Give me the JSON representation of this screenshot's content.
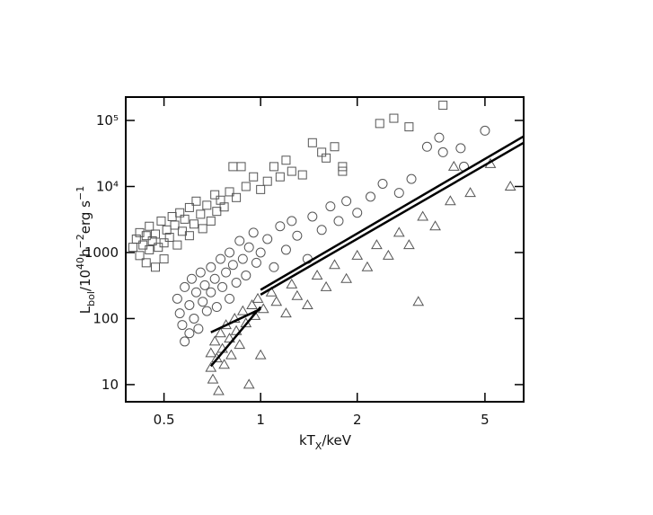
{
  "chart_data": {
    "type": "scatter",
    "xscale": "log",
    "yscale": "log",
    "xlim": [
      0.38,
      6.6
    ],
    "ylim": [
      5.5,
      226000
    ],
    "xticks": [
      0.5,
      1,
      2,
      5
    ],
    "yticks": [
      10,
      100,
      1000,
      {
        "value": 10000,
        "label": "10⁴"
      },
      {
        "value": 100000,
        "label": "10⁵"
      }
    ],
    "xlabel": [
      {
        "text": "kT"
      },
      {
        "text": "X",
        "shift": "sub"
      },
      {
        "text": "/keV"
      }
    ],
    "ylabel": [
      {
        "text": "L"
      },
      {
        "text": "bol",
        "shift": "sub"
      },
      {
        "text": "/10"
      },
      {
        "text": "40",
        "shift": "sup"
      },
      {
        "text": "h"
      },
      {
        "text": "−2",
        "shift": "sup"
      },
      {
        "text": "erg s"
      },
      {
        "text": "−1",
        "shift": "sup"
      }
    ],
    "series": [
      {
        "marker": "square",
        "color": "#555555",
        "x": [
          0.4,
          0.41,
          0.42,
          0.42,
          0.43,
          0.44,
          0.44,
          0.45,
          0.45,
          0.46,
          0.47,
          0.47,
          0.48,
          0.49,
          0.5,
          0.5,
          0.51,
          0.52,
          0.53,
          0.54,
          0.55,
          0.56,
          0.57,
          0.58,
          0.6,
          0.6,
          0.62,
          0.63,
          0.65,
          0.66,
          0.68,
          0.7,
          0.72,
          0.73,
          0.75,
          0.77,
          0.8,
          0.82,
          0.84,
          0.87,
          0.9,
          0.95,
          1.0,
          1.05,
          1.1,
          1.15,
          1.2,
          1.25,
          1.35,
          1.45,
          1.55,
          1.6,
          1.7,
          1.8,
          1.8,
          2.35,
          2.6,
          2.9,
          3.7
        ],
        "values": [
          1200,
          1600,
          900,
          2000,
          1300,
          700,
          1800,
          1100,
          2500,
          1500,
          600,
          1900,
          1200,
          3000,
          1400,
          800,
          2200,
          1700,
          3500,
          2600,
          1300,
          4000,
          2100,
          3200,
          1800,
          4800,
          2700,
          6000,
          3800,
          2300,
          5200,
          3000,
          7500,
          4200,
          6200,
          4900,
          8300,
          20000,
          6800,
          20000,
          10000,
          14000,
          9000,
          12000,
          20000,
          14000,
          25000,
          17000,
          15000,
          46000,
          33000,
          27000,
          40000,
          20000,
          17000,
          90000,
          108000,
          80000,
          170000
        ]
      },
      {
        "marker": "circle",
        "color": "#555555",
        "x": [
          0.55,
          0.56,
          0.57,
          0.58,
          0.58,
          0.6,
          0.6,
          0.61,
          0.62,
          0.63,
          0.64,
          0.65,
          0.66,
          0.67,
          0.68,
          0.7,
          0.7,
          0.72,
          0.73,
          0.75,
          0.76,
          0.78,
          0.8,
          0.8,
          0.82,
          0.84,
          0.86,
          0.88,
          0.9,
          0.92,
          0.95,
          0.97,
          1.0,
          1.05,
          1.1,
          1.15,
          1.2,
          1.25,
          1.3,
          1.4,
          1.45,
          1.55,
          1.65,
          1.75,
          1.85,
          2.0,
          2.2,
          2.4,
          2.7,
          2.95,
          3.3,
          3.6,
          3.7,
          4.2,
          4.3,
          5.0
        ],
        "values": [
          200,
          120,
          80,
          45,
          300,
          60,
          160,
          400,
          100,
          250,
          70,
          500,
          180,
          320,
          130,
          600,
          250,
          400,
          150,
          800,
          300,
          500,
          1000,
          200,
          650,
          350,
          1500,
          800,
          450,
          1200,
          2000,
          700,
          1000,
          1600,
          600,
          2500,
          1100,
          3000,
          1800,
          800,
          3500,
          2200,
          5000,
          3000,
          6000,
          4000,
          7000,
          11000,
          8000,
          13000,
          40000,
          55000,
          33000,
          38000,
          20000,
          70000
        ]
      },
      {
        "marker": "triangle",
        "color": "#555555",
        "x": [
          0.7,
          0.7,
          0.71,
          0.72,
          0.73,
          0.74,
          0.75,
          0.76,
          0.77,
          0.78,
          0.8,
          0.81,
          0.83,
          0.84,
          0.86,
          0.88,
          0.9,
          0.92,
          0.94,
          0.96,
          0.98,
          1.0,
          1.02,
          1.08,
          1.12,
          1.2,
          1.25,
          1.3,
          1.4,
          1.5,
          1.6,
          1.7,
          1.85,
          2.0,
          2.15,
          2.3,
          2.5,
          2.7,
          2.9,
          3.1,
          3.2,
          3.5,
          3.9,
          4.0,
          4.5,
          5.2,
          6.0
        ],
        "values": [
          18,
          30,
          12,
          45,
          25,
          8,
          60,
          35,
          20,
          80,
          50,
          28,
          100,
          65,
          40,
          130,
          85,
          10,
          160,
          110,
          200,
          28,
          140,
          250,
          180,
          120,
          330,
          220,
          160,
          450,
          300,
          650,
          400,
          900,
          600,
          1300,
          900,
          2000,
          1300,
          180,
          3500,
          2500,
          6000,
          20000,
          8000,
          22000,
          10000
        ]
      },
      {
        "marker": "line",
        "color": "#000000",
        "x": [
          0.7,
          1.0
        ],
        "values": [
          19,
          150
        ]
      },
      {
        "marker": "line",
        "color": "#000000",
        "x": [
          0.7,
          1.0
        ],
        "values": [
          62,
          140
        ]
      },
      {
        "marker": "line",
        "color": "#000000",
        "x": [
          1.0,
          6.6
        ],
        "values": [
          230,
          46000
        ]
      },
      {
        "marker": "line",
        "color": "#000000",
        "x": [
          1.0,
          6.6
        ],
        "values": [
          272,
          57500
        ]
      }
    ]
  }
}
